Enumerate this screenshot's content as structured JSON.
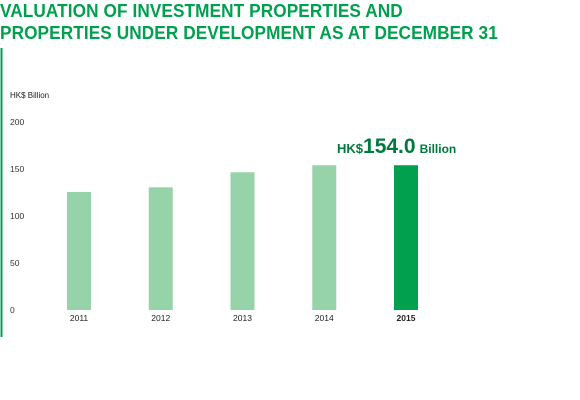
{
  "title_lines": [
    "VALUATION OF INVESTMENT PROPERTIES AND",
    "PROPERTIES UNDER DEVELOPMENT AS AT DECEMBER 31"
  ],
  "colors": {
    "title": "#00A04F",
    "axis": "#00A04F",
    "bar": "#96D3A8",
    "bar_highlight": "#00A04F",
    "callout": "#007A3D"
  },
  "callout": {
    "prefix": "HK$",
    "value": "154.0",
    "suffix": "Billion"
  },
  "chart_data": {
    "type": "bar",
    "title": "VALUATION OF INVESTMENT PROPERTIES AND PROPERTIES UNDER DEVELOPMENT AS AT DECEMBER 31",
    "ylabel": "HK$ Billion",
    "xlabel": "",
    "categories": [
      "2011",
      "2012",
      "2013",
      "2014",
      "2015"
    ],
    "values": [
      125.5,
      130.5,
      146.5,
      154.0,
      154.0
    ],
    "highlight_index": 4,
    "ylim": [
      0,
      200
    ],
    "yticks": [
      0,
      50,
      100,
      150,
      200
    ],
    "grid": false,
    "legend": "none"
  }
}
